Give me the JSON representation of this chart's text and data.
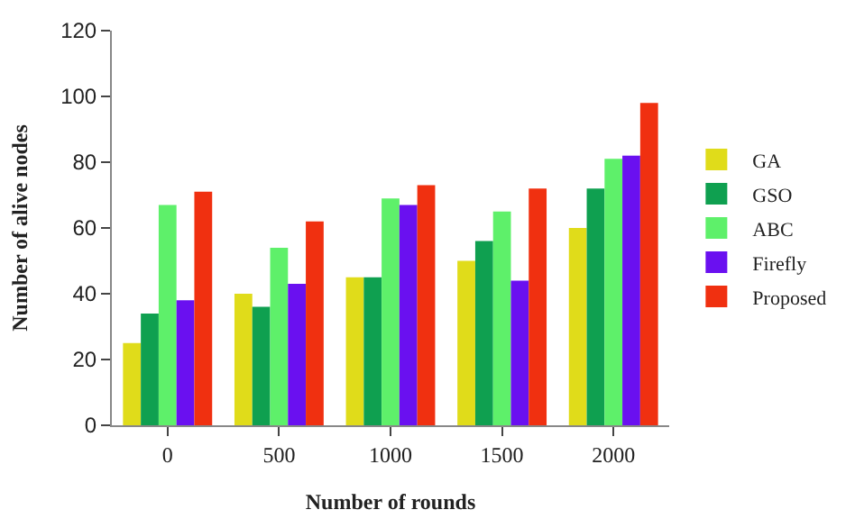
{
  "chart_data": {
    "type": "bar",
    "xlabel": "Number of rounds",
    "ylabel": "Number of alive nodes",
    "categories": [
      "0",
      "500",
      "1000",
      "1500",
      "2000"
    ],
    "series": [
      {
        "name": "GA",
        "color": "#e0dc1a",
        "values": [
          25,
          40,
          45,
          50,
          60
        ]
      },
      {
        "name": "GSO",
        "color": "#0fa050",
        "values": [
          34,
          36,
          45,
          56,
          72
        ]
      },
      {
        "name": "ABC",
        "color": "#5ef06a",
        "values": [
          67,
          54,
          69,
          65,
          81
        ]
      },
      {
        "name": "Firefly",
        "color": "#6a10f0",
        "values": [
          38,
          43,
          67,
          44,
          82
        ]
      },
      {
        "name": "Proposed",
        "color": "#f03010",
        "values": [
          71,
          62,
          73,
          72,
          98
        ]
      }
    ],
    "ylim": [
      0,
      120
    ],
    "yticks": [
      0,
      20,
      40,
      60,
      80,
      100,
      120
    ],
    "legend": "right"
  }
}
